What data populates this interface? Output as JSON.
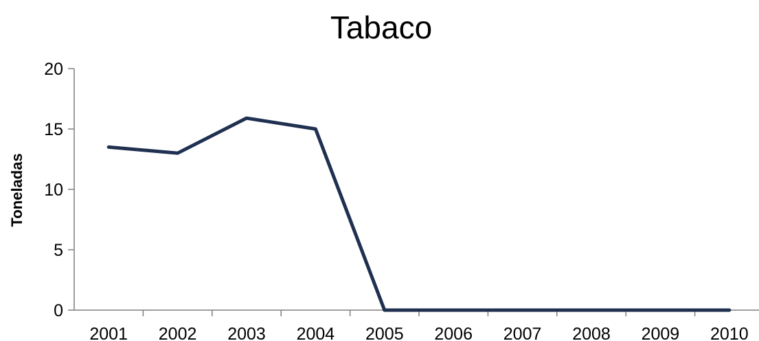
{
  "chart_data": {
    "type": "line",
    "title": "Tabaco",
    "xlabel": "",
    "ylabel": "Toneladas",
    "categories": [
      "2001",
      "2002",
      "2003",
      "2004",
      "2005",
      "2006",
      "2007",
      "2008",
      "2009",
      "2010"
    ],
    "series": [
      {
        "values": [
          13.5,
          13.0,
          15.9,
          15.0,
          0,
          0,
          0,
          0,
          0,
          0
        ]
      }
    ],
    "ylim": [
      0,
      20
    ],
    "yticks": [
      "0",
      "5",
      "10",
      "15",
      "20"
    ],
    "grid": false,
    "legend": "none",
    "colors": {
      "line": "#1f3050",
      "axis": "#7f7f7f"
    }
  }
}
